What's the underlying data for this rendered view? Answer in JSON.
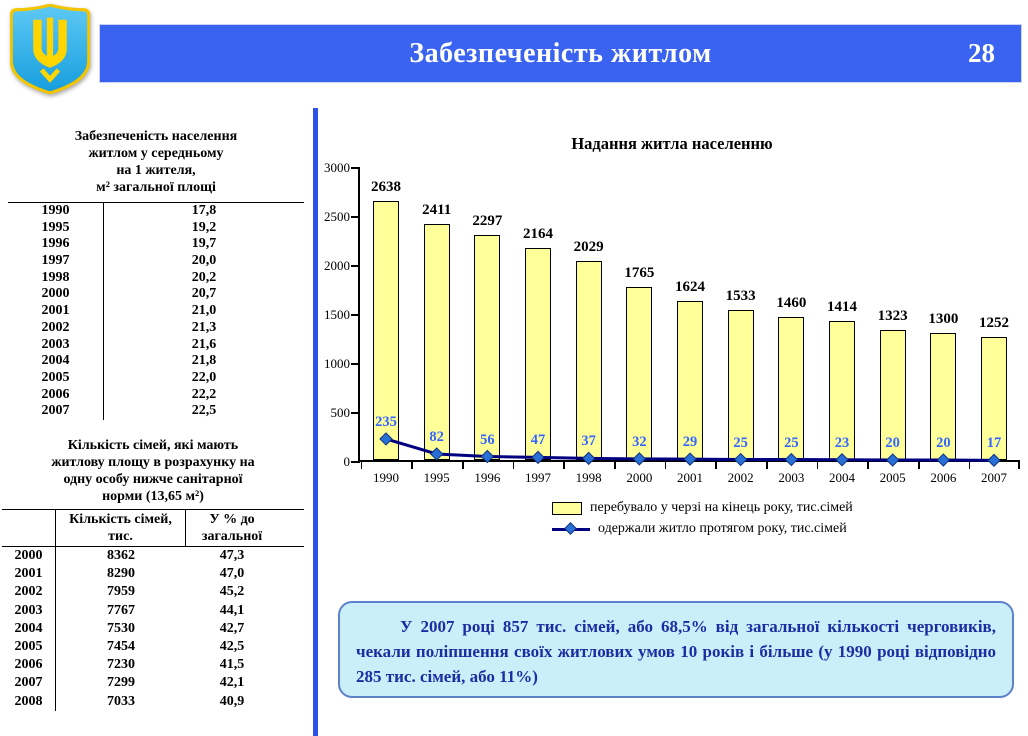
{
  "header": {
    "title": "Забезпеченість житлом",
    "page_number": "28"
  },
  "logo": {
    "name": "coat-of-arms-of-ukraine"
  },
  "left_panel": {
    "table1": {
      "title_lines": [
        "Забезпеченість населення",
        "житлом у середньому",
        "на 1 жителя,",
        "м²  загальної площі"
      ],
      "rows": [
        [
          "1990",
          "17,8"
        ],
        [
          "1995",
          "19,2"
        ],
        [
          "1996",
          "19,7"
        ],
        [
          "1997",
          "20,0"
        ],
        [
          "1998",
          "20,2"
        ],
        [
          "2000",
          "20,7"
        ],
        [
          "2001",
          "21,0"
        ],
        [
          "2002",
          "21,3"
        ],
        [
          "2003",
          "21,6"
        ],
        [
          "2004",
          "21,8"
        ],
        [
          "2005",
          "22,0"
        ],
        [
          "2006",
          "22,2"
        ],
        [
          "2007",
          "22,5"
        ]
      ]
    },
    "table2": {
      "title_lines": [
        "Кількість сімей, які мають",
        "житлову площу в розрахунку на",
        "одну особу нижче санітарної",
        "норми (13,65 м²)"
      ],
      "col_headers": [
        "Кількість сімей,\nтис.",
        "У % до\nзагальної"
      ],
      "rows": [
        [
          "2000",
          "8362",
          "47,3"
        ],
        [
          "2001",
          "8290",
          "47,0"
        ],
        [
          "2002",
          "7959",
          "45,2"
        ],
        [
          "2003",
          "7767",
          "44,1"
        ],
        [
          "2004",
          "7530",
          "42,7"
        ],
        [
          "2005",
          "7454",
          "42,5"
        ],
        [
          "2006",
          "7230",
          "41,5"
        ],
        [
          "2007",
          "7299",
          "42,1"
        ],
        [
          "2008",
          "7033",
          "40,9"
        ]
      ]
    }
  },
  "chart_data": {
    "type": "bar",
    "title": "Надання житла населенню",
    "categories": [
      "1990",
      "1995",
      "1996",
      "1997",
      "1998",
      "2000",
      "2001",
      "2002",
      "2003",
      "2004",
      "2005",
      "2006",
      "2007"
    ],
    "series": [
      {
        "name": "перебувало у черзі на кінець року, тис.сімей",
        "type": "bar",
        "color": "#ffff99",
        "values": [
          2638,
          2411,
          2297,
          2164,
          2029,
          1765,
          1624,
          1533,
          1460,
          1414,
          1323,
          1300,
          1252
        ]
      },
      {
        "name": "одержали житло протягом року, тис.сімей",
        "type": "line",
        "color": "#000080",
        "marker_color": "#2970d6",
        "values": [
          235,
          82,
          56,
          47,
          37,
          32,
          29,
          25,
          25,
          23,
          20,
          20,
          17
        ]
      }
    ],
    "ylim": [
      0,
      3000
    ],
    "ytick_step": 500,
    "grid": false,
    "legend_position": "bottom"
  },
  "note_box": {
    "text": "У 2007 році 857 тис. сімей, або 68,5% від загальної кількості черговиків, чекали поліпшення своїх житлових умов 10 років і більше (у 1990 році відповідно 285 тис. сімей, або 11%)"
  },
  "colors": {
    "header_blue": "#3a63f1",
    "divider_blue": "#2e52e8",
    "note_bg": "#cbeff9",
    "note_border": "#5e81cc",
    "note_text": "#1b2da3",
    "line_label_blue": "#3366ff"
  }
}
